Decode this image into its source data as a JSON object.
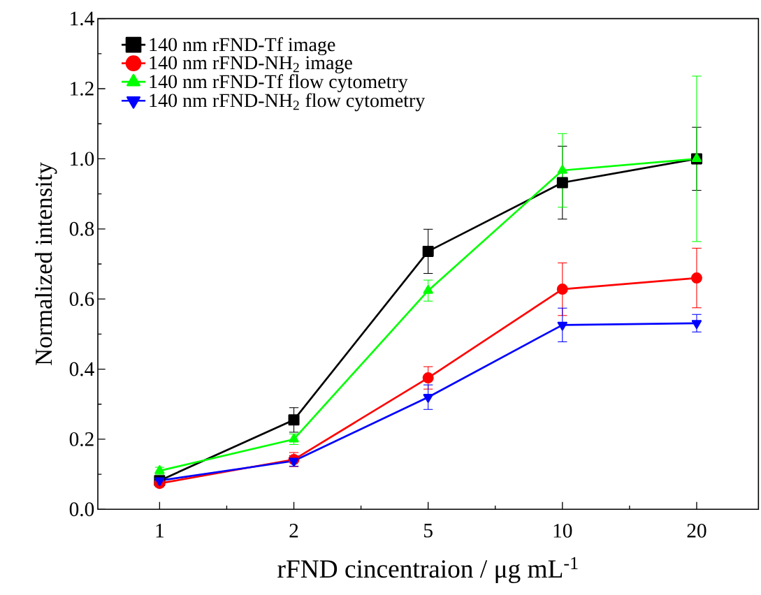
{
  "chart_data": {
    "type": "line",
    "xlabel": "rFND cincentraion / μg mL$^{-1}$",
    "ylabel": "Normalized intensity",
    "categories": [
      "1",
      "2",
      "5",
      "10",
      "20"
    ],
    "ylim": [
      0,
      1.4
    ],
    "yticks": [
      {
        "value": 0,
        "label": "0.0"
      },
      0.2,
      0.4,
      0.6,
      0.8,
      {
        "value": 1,
        "label": "1.0"
      },
      1.2,
      1.4
    ],
    "grid": false,
    "legend": "top left",
    "line_style": "solid",
    "series": [
      {
        "name": "140 nm rFND-Tf image",
        "color": "#000000",
        "marker": "square",
        "values": [
          0.082,
          0.255,
          0.736,
          0.932,
          1.0
        ],
        "errors": [
          0.01,
          0.035,
          0.063,
          0.104,
          0.09
        ]
      },
      {
        "name": "140 nm rFND-NH$_{2}$ image",
        "color": "#ff0000",
        "marker": "circle",
        "values": [
          0.074,
          0.142,
          0.375,
          0.628,
          0.66
        ],
        "errors": [
          0.01,
          0.02,
          0.032,
          0.075,
          0.085
        ]
      },
      {
        "name": "140 nm rFND-Tf flow cytometry",
        "color": "#00ff00",
        "marker": "triangle",
        "values": [
          0.11,
          0.2,
          0.624,
          0.967,
          1.0
        ],
        "errors": [
          0.01,
          0.015,
          0.03,
          0.105,
          0.236
        ]
      },
      {
        "name": "140 nm rFND-NH$_{2}$ flow cytometry",
        "color": "#0000ff",
        "marker": "triangle down",
        "values": [
          0.082,
          0.138,
          0.32,
          0.526,
          0.531
        ],
        "errors": [
          0.01,
          0.015,
          0.035,
          0.048,
          0.025
        ]
      }
    ]
  }
}
